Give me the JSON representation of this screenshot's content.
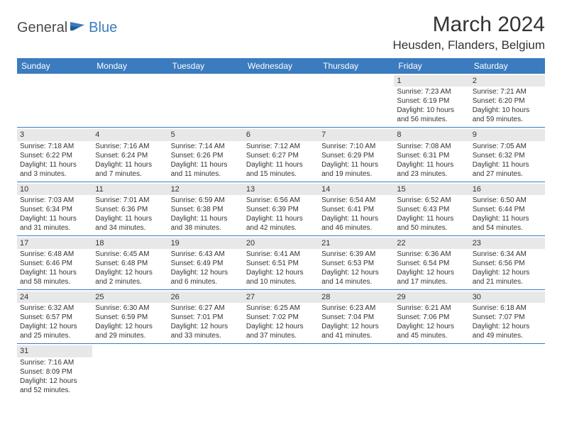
{
  "brand": {
    "part1": "General",
    "part2": "Blue"
  },
  "title": "March 2024",
  "location": "Heusden, Flanders, Belgium",
  "colors": {
    "accent": "#3b7bbf",
    "dayBg": "#e8e8e8",
    "text": "#333333"
  },
  "dayHeaders": [
    "Sunday",
    "Monday",
    "Tuesday",
    "Wednesday",
    "Thursday",
    "Friday",
    "Saturday"
  ],
  "weeks": [
    [
      null,
      null,
      null,
      null,
      null,
      {
        "n": "1",
        "sr": "Sunrise: 7:23 AM",
        "ss": "Sunset: 6:19 PM",
        "d1": "Daylight: 10 hours",
        "d2": "and 56 minutes."
      },
      {
        "n": "2",
        "sr": "Sunrise: 7:21 AM",
        "ss": "Sunset: 6:20 PM",
        "d1": "Daylight: 10 hours",
        "d2": "and 59 minutes."
      }
    ],
    [
      {
        "n": "3",
        "sr": "Sunrise: 7:18 AM",
        "ss": "Sunset: 6:22 PM",
        "d1": "Daylight: 11 hours",
        "d2": "and 3 minutes."
      },
      {
        "n": "4",
        "sr": "Sunrise: 7:16 AM",
        "ss": "Sunset: 6:24 PM",
        "d1": "Daylight: 11 hours",
        "d2": "and 7 minutes."
      },
      {
        "n": "5",
        "sr": "Sunrise: 7:14 AM",
        "ss": "Sunset: 6:26 PM",
        "d1": "Daylight: 11 hours",
        "d2": "and 11 minutes."
      },
      {
        "n": "6",
        "sr": "Sunrise: 7:12 AM",
        "ss": "Sunset: 6:27 PM",
        "d1": "Daylight: 11 hours",
        "d2": "and 15 minutes."
      },
      {
        "n": "7",
        "sr": "Sunrise: 7:10 AM",
        "ss": "Sunset: 6:29 PM",
        "d1": "Daylight: 11 hours",
        "d2": "and 19 minutes."
      },
      {
        "n": "8",
        "sr": "Sunrise: 7:08 AM",
        "ss": "Sunset: 6:31 PM",
        "d1": "Daylight: 11 hours",
        "d2": "and 23 minutes."
      },
      {
        "n": "9",
        "sr": "Sunrise: 7:05 AM",
        "ss": "Sunset: 6:32 PM",
        "d1": "Daylight: 11 hours",
        "d2": "and 27 minutes."
      }
    ],
    [
      {
        "n": "10",
        "sr": "Sunrise: 7:03 AM",
        "ss": "Sunset: 6:34 PM",
        "d1": "Daylight: 11 hours",
        "d2": "and 31 minutes."
      },
      {
        "n": "11",
        "sr": "Sunrise: 7:01 AM",
        "ss": "Sunset: 6:36 PM",
        "d1": "Daylight: 11 hours",
        "d2": "and 34 minutes."
      },
      {
        "n": "12",
        "sr": "Sunrise: 6:59 AM",
        "ss": "Sunset: 6:38 PM",
        "d1": "Daylight: 11 hours",
        "d2": "and 38 minutes."
      },
      {
        "n": "13",
        "sr": "Sunrise: 6:56 AM",
        "ss": "Sunset: 6:39 PM",
        "d1": "Daylight: 11 hours",
        "d2": "and 42 minutes."
      },
      {
        "n": "14",
        "sr": "Sunrise: 6:54 AM",
        "ss": "Sunset: 6:41 PM",
        "d1": "Daylight: 11 hours",
        "d2": "and 46 minutes."
      },
      {
        "n": "15",
        "sr": "Sunrise: 6:52 AM",
        "ss": "Sunset: 6:43 PM",
        "d1": "Daylight: 11 hours",
        "d2": "and 50 minutes."
      },
      {
        "n": "16",
        "sr": "Sunrise: 6:50 AM",
        "ss": "Sunset: 6:44 PM",
        "d1": "Daylight: 11 hours",
        "d2": "and 54 minutes."
      }
    ],
    [
      {
        "n": "17",
        "sr": "Sunrise: 6:48 AM",
        "ss": "Sunset: 6:46 PM",
        "d1": "Daylight: 11 hours",
        "d2": "and 58 minutes."
      },
      {
        "n": "18",
        "sr": "Sunrise: 6:45 AM",
        "ss": "Sunset: 6:48 PM",
        "d1": "Daylight: 12 hours",
        "d2": "and 2 minutes."
      },
      {
        "n": "19",
        "sr": "Sunrise: 6:43 AM",
        "ss": "Sunset: 6:49 PM",
        "d1": "Daylight: 12 hours",
        "d2": "and 6 minutes."
      },
      {
        "n": "20",
        "sr": "Sunrise: 6:41 AM",
        "ss": "Sunset: 6:51 PM",
        "d1": "Daylight: 12 hours",
        "d2": "and 10 minutes."
      },
      {
        "n": "21",
        "sr": "Sunrise: 6:39 AM",
        "ss": "Sunset: 6:53 PM",
        "d1": "Daylight: 12 hours",
        "d2": "and 14 minutes."
      },
      {
        "n": "22",
        "sr": "Sunrise: 6:36 AM",
        "ss": "Sunset: 6:54 PM",
        "d1": "Daylight: 12 hours",
        "d2": "and 17 minutes."
      },
      {
        "n": "23",
        "sr": "Sunrise: 6:34 AM",
        "ss": "Sunset: 6:56 PM",
        "d1": "Daylight: 12 hours",
        "d2": "and 21 minutes."
      }
    ],
    [
      {
        "n": "24",
        "sr": "Sunrise: 6:32 AM",
        "ss": "Sunset: 6:57 PM",
        "d1": "Daylight: 12 hours",
        "d2": "and 25 minutes."
      },
      {
        "n": "25",
        "sr": "Sunrise: 6:30 AM",
        "ss": "Sunset: 6:59 PM",
        "d1": "Daylight: 12 hours",
        "d2": "and 29 minutes."
      },
      {
        "n": "26",
        "sr": "Sunrise: 6:27 AM",
        "ss": "Sunset: 7:01 PM",
        "d1": "Daylight: 12 hours",
        "d2": "and 33 minutes."
      },
      {
        "n": "27",
        "sr": "Sunrise: 6:25 AM",
        "ss": "Sunset: 7:02 PM",
        "d1": "Daylight: 12 hours",
        "d2": "and 37 minutes."
      },
      {
        "n": "28",
        "sr": "Sunrise: 6:23 AM",
        "ss": "Sunset: 7:04 PM",
        "d1": "Daylight: 12 hours",
        "d2": "and 41 minutes."
      },
      {
        "n": "29",
        "sr": "Sunrise: 6:21 AM",
        "ss": "Sunset: 7:06 PM",
        "d1": "Daylight: 12 hours",
        "d2": "and 45 minutes."
      },
      {
        "n": "30",
        "sr": "Sunrise: 6:18 AM",
        "ss": "Sunset: 7:07 PM",
        "d1": "Daylight: 12 hours",
        "d2": "and 49 minutes."
      }
    ],
    [
      {
        "n": "31",
        "sr": "Sunrise: 7:16 AM",
        "ss": "Sunset: 8:09 PM",
        "d1": "Daylight: 12 hours",
        "d2": "and 52 minutes."
      },
      null,
      null,
      null,
      null,
      null,
      null
    ]
  ]
}
